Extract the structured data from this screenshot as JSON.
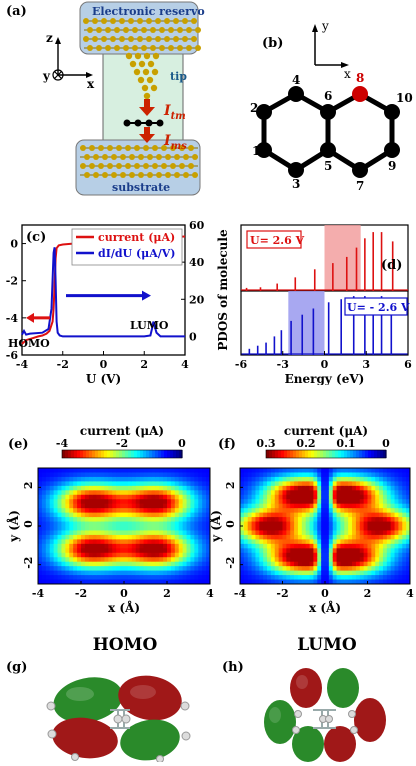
{
  "panel_labels": {
    "a": "(a)",
    "b": "(b)",
    "c": "(c)",
    "d": "(d)",
    "e": "(e)",
    "f": "(f)",
    "g": "(g)",
    "h": "(h)"
  },
  "panel_a": {
    "reservoir": "Electronic reservoir",
    "tip": "tip",
    "substrate": "substrate",
    "itm": "I",
    "itm_sub": "tm",
    "ims": "I",
    "ims_sub": "ms",
    "axes": {
      "z": "z",
      "y": "y",
      "x": "x"
    },
    "colors": {
      "reservoir": "#b7cfe6",
      "junction": "#d7efe0",
      "atom": "#c8a000",
      "arrow": "#cc2200"
    }
  },
  "panel_b": {
    "axes": {
      "y": "y",
      "x": "x"
    },
    "atom_labels": [
      "1",
      "2",
      "3",
      "4",
      "5",
      "6",
      "7",
      "8",
      "9",
      "10"
    ],
    "highlight_atom": "8",
    "colors": {
      "atom": "#000000",
      "highlight": "#cc0000"
    }
  },
  "chart_data": [
    {
      "id": "c",
      "type": "line",
      "xlabel": "U (V)",
      "ylabel_left": "",
      "ylabel_right": "",
      "xlim": [
        -4,
        4
      ],
      "ylim_left": [
        -6,
        1
      ],
      "ylim_right": [
        -10,
        60
      ],
      "xticks": [
        "-4",
        "-2",
        "0",
        "2",
        "4"
      ],
      "yticks_left": [
        "-6",
        "-4",
        "-2",
        "0"
      ],
      "yticks_right": [
        "0",
        "20",
        "40",
        "60"
      ],
      "legend": [
        {
          "name": "current",
          "unit": "(μA)",
          "color": "#dd1111"
        },
        {
          "name": "dI/dU",
          "unit": "(μA/V)",
          "color": "#1111cc"
        }
      ],
      "annotations": [
        "HOMO",
        "LUMO"
      ],
      "series": [
        {
          "name": "current",
          "axis": "left",
          "color": "#dd1111",
          "x": [
            -4,
            -3.8,
            -3.5,
            -3.2,
            -3.0,
            -2.8,
            -2.65,
            -2.5,
            -2.45,
            -2.4,
            -2.35,
            -2.3,
            -2.2,
            -2.0,
            -1.5,
            -1.0,
            0,
            1.0,
            2.0,
            2.3,
            2.4,
            2.5,
            2.6,
            3.0,
            3.5,
            4.0
          ],
          "y": [
            -5.4,
            -5.2,
            -5.1,
            -5.0,
            -4.95,
            -4.85,
            -4.7,
            -4.2,
            -3.5,
            -2.2,
            -0.8,
            -0.25,
            -0.1,
            -0.05,
            0,
            0,
            0,
            0,
            0,
            0.02,
            0.12,
            0.3,
            0.35,
            0.35,
            0.36,
            0.38
          ]
        },
        {
          "name": "dI/dU",
          "axis": "right",
          "color": "#1111cc",
          "x": [
            -4,
            -3.9,
            -3.8,
            -3.6,
            -3.0,
            -2.7,
            -2.55,
            -2.45,
            -2.4,
            -2.35,
            -2.3,
            -2.25,
            -2.15,
            -2.0,
            0,
            2.0,
            2.3,
            2.4,
            2.45,
            2.6,
            2.8,
            4.0
          ],
          "y": [
            1,
            3,
            1,
            1.5,
            2,
            4,
            15,
            45,
            48,
            30,
            8,
            2,
            0.5,
            0,
            0,
            0,
            0.5,
            5,
            8,
            2,
            0,
            0
          ]
        }
      ]
    },
    {
      "id": "d",
      "type": "line",
      "xlabel": "Energy (eV)",
      "ylabel": "PDOS of molecule",
      "xlim": [
        -6,
        6
      ],
      "xticks": [
        "-6",
        "-3",
        "0",
        "3",
        "6"
      ],
      "boxes": [
        {
          "label": "U= 2.6 V",
          "color": "#dd1111"
        },
        {
          "label": "U= - 2.6 V",
          "color": "#1111cc"
        }
      ],
      "windows": [
        {
          "from": 0,
          "to": 2.6,
          "color": "#f19999"
        },
        {
          "from": -2.6,
          "to": 0,
          "color": "#9999ee"
        }
      ],
      "series": [
        {
          "name": "top",
          "color": "#dd1111",
          "peaks": [
            -5.6,
            -4.6,
            -3.4,
            -2.1,
            -0.7,
            0.6,
            1.6,
            2.3,
            2.9,
            3.5,
            4.1,
            4.9
          ],
          "heights": [
            0.05,
            0.06,
            0.12,
            0.22,
            0.35,
            0.45,
            0.55,
            0.7,
            0.85,
            0.95,
            0.95,
            0.8
          ]
        },
        {
          "name": "bottom",
          "color": "#1111cc",
          "peaks": [
            -5.4,
            -4.8,
            -4.2,
            -3.6,
            -3.1,
            -2.4,
            -1.6,
            -0.8,
            0.3,
            1.2,
            2.1,
            2.9,
            3.5,
            4.1,
            4.8
          ],
          "heights": [
            0.1,
            0.15,
            0.2,
            0.3,
            0.4,
            0.55,
            0.65,
            0.75,
            0.85,
            0.9,
            0.95,
            0.95,
            0.9,
            0.95,
            0.9
          ]
        }
      ]
    },
    {
      "id": "e",
      "type": "heatmap",
      "title": "current (μA)",
      "colorbar_ticks": [
        "-4",
        "-2",
        "0"
      ],
      "xlabel": "x (Å)",
      "ylabel": "y (Å)",
      "xticks": [
        "-4",
        "-2",
        "0",
        "2",
        "4"
      ],
      "yticks": [
        "2",
        "0",
        "-2"
      ],
      "xlim": [
        -4,
        4
      ],
      "ylim": [
        -3,
        3
      ],
      "lobes": [
        [
          -1.5,
          1.2
        ],
        [
          1.5,
          1.2
        ],
        [
          -1.5,
          -1.2
        ],
        [
          1.5,
          -1.2
        ]
      ],
      "caption": "HOMO"
    },
    {
      "id": "f",
      "type": "heatmap",
      "title": "current (μA)",
      "colorbar_ticks": [
        "0.3",
        "0.2",
        "0.1",
        "0"
      ],
      "xlabel": "x (Å)",
      "ylabel": "y (Å)",
      "xticks": [
        "-4",
        "-2",
        "0",
        "2",
        "4"
      ],
      "yticks": [
        "2",
        "0",
        "-2"
      ],
      "xlim": [
        -4,
        4
      ],
      "ylim": [
        -3,
        3
      ],
      "lobes": [
        [
          -1.2,
          1.6
        ],
        [
          1.2,
          1.6
        ],
        [
          -2.6,
          0
        ],
        [
          2.6,
          0
        ],
        [
          -1.2,
          -1.6
        ],
        [
          1.2,
          -1.6
        ]
      ],
      "caption": "LUMO"
    }
  ],
  "orbitals": {
    "g": {
      "colors": {
        "pos": "#a01818",
        "neg": "#2a8a2a"
      }
    },
    "h": {
      "colors": {
        "pos": "#a01818",
        "neg": "#2a8a2a"
      }
    }
  }
}
